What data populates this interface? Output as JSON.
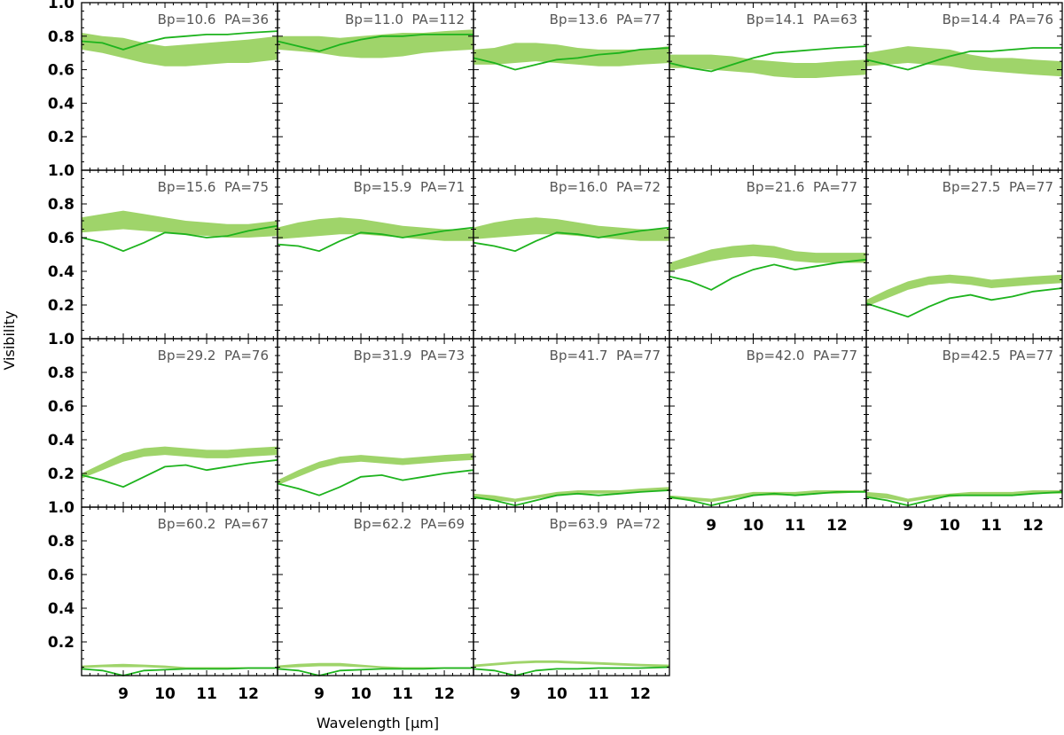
{
  "chart_data": {
    "type": "line",
    "layout": {
      "rows": 4,
      "cols": 5,
      "panels": 18
    },
    "xlabel": "Wavelength [μm]",
    "ylabel": "Visibility",
    "xlim": [
      8.0,
      12.7
    ],
    "ylim": [
      0.0,
      1.0
    ],
    "xticks": [
      9,
      10,
      11,
      12
    ],
    "yticks": [
      0.2,
      0.4,
      0.6,
      0.8,
      1.0
    ],
    "x": [
      8.0,
      8.5,
      9.0,
      9.5,
      10.0,
      10.5,
      11.0,
      11.5,
      12.0,
      12.7
    ],
    "colors": {
      "band": "#9fd46a",
      "model": "#1db31d"
    },
    "panels": [
      {
        "label": "Bp=10.6  PA=36",
        "band_lo": [
          0.72,
          0.7,
          0.67,
          0.64,
          0.62,
          0.62,
          0.63,
          0.64,
          0.64,
          0.66
        ],
        "band_hi": [
          0.82,
          0.8,
          0.79,
          0.76,
          0.74,
          0.75,
          0.76,
          0.77,
          0.78,
          0.8
        ],
        "model": [
          0.77,
          0.76,
          0.72,
          0.76,
          0.79,
          0.8,
          0.81,
          0.81,
          0.82,
          0.83
        ]
      },
      {
        "label": "Bp=11.0  PA=112",
        "band_lo": [
          0.72,
          0.71,
          0.7,
          0.68,
          0.67,
          0.67,
          0.68,
          0.7,
          0.71,
          0.72
        ],
        "band_hi": [
          0.8,
          0.8,
          0.8,
          0.79,
          0.8,
          0.81,
          0.82,
          0.82,
          0.83,
          0.84
        ],
        "model": [
          0.77,
          0.74,
          0.71,
          0.75,
          0.78,
          0.8,
          0.8,
          0.81,
          0.81,
          0.81
        ]
      },
      {
        "label": "Bp=13.6  PA=77",
        "band_lo": [
          0.63,
          0.63,
          0.64,
          0.65,
          0.64,
          0.63,
          0.62,
          0.62,
          0.63,
          0.64
        ],
        "band_hi": [
          0.72,
          0.73,
          0.76,
          0.76,
          0.75,
          0.73,
          0.72,
          0.72,
          0.72,
          0.74
        ],
        "model": [
          0.67,
          0.64,
          0.6,
          0.63,
          0.66,
          0.67,
          0.69,
          0.7,
          0.72,
          0.73
        ]
      },
      {
        "label": "Bp=14.1  PA=63",
        "band_lo": [
          0.61,
          0.61,
          0.6,
          0.59,
          0.58,
          0.56,
          0.55,
          0.55,
          0.56,
          0.57
        ],
        "band_hi": [
          0.69,
          0.69,
          0.69,
          0.68,
          0.66,
          0.65,
          0.64,
          0.64,
          0.65,
          0.66
        ],
        "model": [
          0.64,
          0.61,
          0.59,
          0.63,
          0.67,
          0.7,
          0.71,
          0.72,
          0.73,
          0.74
        ]
      },
      {
        "label": "Bp=14.4  PA=76",
        "band_lo": [
          0.62,
          0.63,
          0.64,
          0.63,
          0.62,
          0.6,
          0.59,
          0.58,
          0.57,
          0.56
        ],
        "band_hi": [
          0.7,
          0.72,
          0.74,
          0.73,
          0.72,
          0.69,
          0.67,
          0.67,
          0.66,
          0.65
        ],
        "model": [
          0.66,
          0.63,
          0.6,
          0.64,
          0.68,
          0.71,
          0.71,
          0.72,
          0.73,
          0.73
        ]
      },
      {
        "label": "Bp=15.6  PA=75",
        "band_lo": [
          0.63,
          0.64,
          0.65,
          0.64,
          0.63,
          0.62,
          0.61,
          0.6,
          0.6,
          0.61
        ],
        "band_hi": [
          0.72,
          0.74,
          0.76,
          0.74,
          0.72,
          0.7,
          0.69,
          0.68,
          0.68,
          0.7
        ],
        "model": [
          0.6,
          0.57,
          0.52,
          0.57,
          0.63,
          0.62,
          0.6,
          0.61,
          0.64,
          0.67
        ]
      },
      {
        "label": "Bp=15.9  PA=71",
        "band_lo": [
          0.59,
          0.6,
          0.61,
          0.62,
          0.62,
          0.61,
          0.6,
          0.59,
          0.58,
          0.58
        ],
        "band_hi": [
          0.66,
          0.69,
          0.71,
          0.72,
          0.71,
          0.69,
          0.67,
          0.66,
          0.65,
          0.65
        ],
        "model": [
          0.56,
          0.55,
          0.52,
          0.58,
          0.63,
          0.62,
          0.6,
          0.62,
          0.64,
          0.66
        ]
      },
      {
        "label": "Bp=16.0  PA=72",
        "band_lo": [
          0.59,
          0.6,
          0.61,
          0.62,
          0.62,
          0.61,
          0.6,
          0.59,
          0.58,
          0.58
        ],
        "band_hi": [
          0.66,
          0.69,
          0.71,
          0.72,
          0.71,
          0.69,
          0.67,
          0.66,
          0.65,
          0.65
        ],
        "model": [
          0.57,
          0.55,
          0.52,
          0.58,
          0.63,
          0.62,
          0.6,
          0.62,
          0.64,
          0.66
        ]
      },
      {
        "label": "Bp=21.6  PA=77",
        "band_lo": [
          0.4,
          0.43,
          0.46,
          0.48,
          0.49,
          0.48,
          0.46,
          0.45,
          0.45,
          0.45
        ],
        "band_hi": [
          0.45,
          0.49,
          0.53,
          0.55,
          0.56,
          0.55,
          0.52,
          0.51,
          0.51,
          0.51
        ],
        "model": [
          0.37,
          0.34,
          0.29,
          0.36,
          0.41,
          0.44,
          0.41,
          0.43,
          0.45,
          0.47
        ]
      },
      {
        "label": "Bp=27.5  PA=77",
        "band_lo": [
          0.19,
          0.24,
          0.29,
          0.32,
          0.33,
          0.32,
          0.3,
          0.31,
          0.32,
          0.33
        ],
        "band_hi": [
          0.23,
          0.29,
          0.34,
          0.37,
          0.38,
          0.37,
          0.35,
          0.36,
          0.37,
          0.38
        ],
        "model": [
          0.21,
          0.17,
          0.13,
          0.19,
          0.24,
          0.26,
          0.23,
          0.25,
          0.28,
          0.3
        ]
      },
      {
        "label": "Bp=29.2  PA=76",
        "band_lo": [
          0.17,
          0.22,
          0.27,
          0.3,
          0.31,
          0.3,
          0.29,
          0.29,
          0.3,
          0.31
        ],
        "band_hi": [
          0.2,
          0.26,
          0.32,
          0.35,
          0.36,
          0.35,
          0.34,
          0.34,
          0.35,
          0.36
        ],
        "model": [
          0.19,
          0.16,
          0.12,
          0.18,
          0.24,
          0.25,
          0.22,
          0.24,
          0.26,
          0.28
        ]
      },
      {
        "label": "Bp=31.9  PA=73",
        "band_lo": [
          0.13,
          0.18,
          0.23,
          0.26,
          0.27,
          0.26,
          0.25,
          0.26,
          0.27,
          0.28
        ],
        "band_hi": [
          0.16,
          0.22,
          0.27,
          0.3,
          0.31,
          0.3,
          0.29,
          0.3,
          0.31,
          0.32
        ],
        "model": [
          0.14,
          0.11,
          0.07,
          0.12,
          0.18,
          0.19,
          0.16,
          0.18,
          0.2,
          0.22
        ]
      },
      {
        "label": "Bp=41.7  PA=77",
        "band_lo": [
          0.05,
          0.04,
          0.03,
          0.05,
          0.07,
          0.08,
          0.08,
          0.08,
          0.09,
          0.1
        ],
        "band_hi": [
          0.08,
          0.07,
          0.05,
          0.07,
          0.09,
          0.1,
          0.1,
          0.1,
          0.11,
          0.12
        ],
        "model": [
          0.06,
          0.04,
          0.01,
          0.04,
          0.07,
          0.08,
          0.07,
          0.08,
          0.09,
          0.1
        ]
      },
      {
        "label": "Bp=42.0  PA=77",
        "band_lo": [
          0.05,
          0.04,
          0.03,
          0.05,
          0.07,
          0.07,
          0.07,
          0.08,
          0.08,
          0.09
        ],
        "band_hi": [
          0.07,
          0.06,
          0.05,
          0.07,
          0.09,
          0.09,
          0.09,
          0.1,
          0.1,
          0.1
        ],
        "model": [
          0.06,
          0.04,
          0.01,
          0.04,
          0.07,
          0.08,
          0.07,
          0.08,
          0.09,
          0.09
        ]
      },
      {
        "label": "Bp=42.5  PA=77",
        "band_lo": [
          0.06,
          0.05,
          0.03,
          0.05,
          0.06,
          0.07,
          0.07,
          0.07,
          0.08,
          0.08
        ],
        "band_hi": [
          0.09,
          0.08,
          0.05,
          0.07,
          0.08,
          0.09,
          0.09,
          0.09,
          0.1,
          0.1
        ],
        "model": [
          0.06,
          0.04,
          0.01,
          0.04,
          0.07,
          0.07,
          0.07,
          0.07,
          0.08,
          0.09
        ]
      },
      {
        "label": "Bp=60.2  PA=67",
        "band_lo": [
          0.045,
          0.05,
          0.05,
          0.05,
          0.045,
          0.04,
          0.04,
          0.04,
          0.04,
          0.04
        ],
        "band_hi": [
          0.06,
          0.065,
          0.07,
          0.065,
          0.06,
          0.05,
          0.05,
          0.05,
          0.05,
          0.05
        ],
        "model": [
          0.04,
          0.03,
          0.0,
          0.03,
          0.035,
          0.04,
          0.04,
          0.04,
          0.045,
          0.045
        ]
      },
      {
        "label": "Bp=62.2  PA=69",
        "band_lo": [
          0.045,
          0.05,
          0.055,
          0.055,
          0.05,
          0.045,
          0.04,
          0.04,
          0.04,
          0.04
        ],
        "band_hi": [
          0.06,
          0.07,
          0.075,
          0.075,
          0.065,
          0.055,
          0.05,
          0.05,
          0.05,
          0.05
        ],
        "model": [
          0.04,
          0.03,
          0.0,
          0.03,
          0.035,
          0.04,
          0.04,
          0.04,
          0.045,
          0.045
        ]
      },
      {
        "label": "Bp=63.9  PA=72",
        "band_lo": [
          0.05,
          0.06,
          0.07,
          0.075,
          0.075,
          0.07,
          0.065,
          0.06,
          0.055,
          0.05
        ],
        "band_hi": [
          0.065,
          0.075,
          0.085,
          0.09,
          0.09,
          0.085,
          0.08,
          0.075,
          0.07,
          0.065
        ],
        "model": [
          0.04,
          0.03,
          0.0,
          0.03,
          0.04,
          0.04,
          0.045,
          0.045,
          0.045,
          0.05
        ]
      }
    ]
  }
}
